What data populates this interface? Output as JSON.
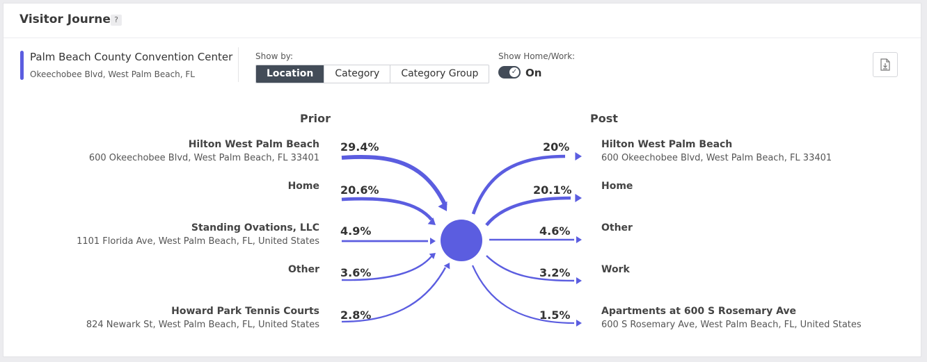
{
  "header": {
    "title": "Visitor Journey",
    "help_glyph": "?"
  },
  "venue": {
    "name": "Palm Beach County Convention Center",
    "address": "Okeechobee Blvd, West Palm Beach, FL"
  },
  "show_by": {
    "label": "Show by:",
    "options": [
      "Location",
      "Category",
      "Category Group"
    ],
    "selected": "Location"
  },
  "home_work": {
    "label": "Show Home/Work:",
    "state": "On",
    "enabled": true
  },
  "download": {
    "icon": "download-file-icon"
  },
  "journey": {
    "prior_title": "Prior",
    "post_title": "Post",
    "prior": [
      {
        "name": "Hilton West Palm Beach",
        "address": "600 Okeechobee Blvd, West Palm Beach, FL 33401",
        "pct": "29.4%",
        "value": 29.4
      },
      {
        "name": "Home",
        "address": "",
        "pct": "20.6%",
        "value": 20.6
      },
      {
        "name": "Standing Ovations, LLC",
        "address": "1101 Florida Ave, West Palm Beach, FL, United States",
        "pct": "4.9%",
        "value": 4.9
      },
      {
        "name": "Other",
        "address": "",
        "pct": "3.6%",
        "value": 3.6
      },
      {
        "name": "Howard Park Tennis Courts",
        "address": "824 Newark St, West Palm Beach, FL, United States",
        "pct": "2.8%",
        "value": 2.8
      }
    ],
    "post": [
      {
        "name": "Hilton West Palm Beach",
        "address": "600 Okeechobee Blvd, West Palm Beach, FL 33401",
        "pct": "20%",
        "value": 20
      },
      {
        "name": "Home",
        "address": "",
        "pct": "20.1%",
        "value": 20.1
      },
      {
        "name": "Other",
        "address": "",
        "pct": "4.6%",
        "value": 4.6
      },
      {
        "name": "Work",
        "address": "",
        "pct": "3.2%",
        "value": 3.2
      },
      {
        "name": "Apartments at 600 S Rosemary Ave",
        "address": "600 S Rosemary Ave, West Palm Beach, FL, United States",
        "pct": "1.5%",
        "value": 1.5
      }
    ]
  },
  "colors": {
    "accent": "#5b5de0",
    "dark": "#434c58"
  }
}
